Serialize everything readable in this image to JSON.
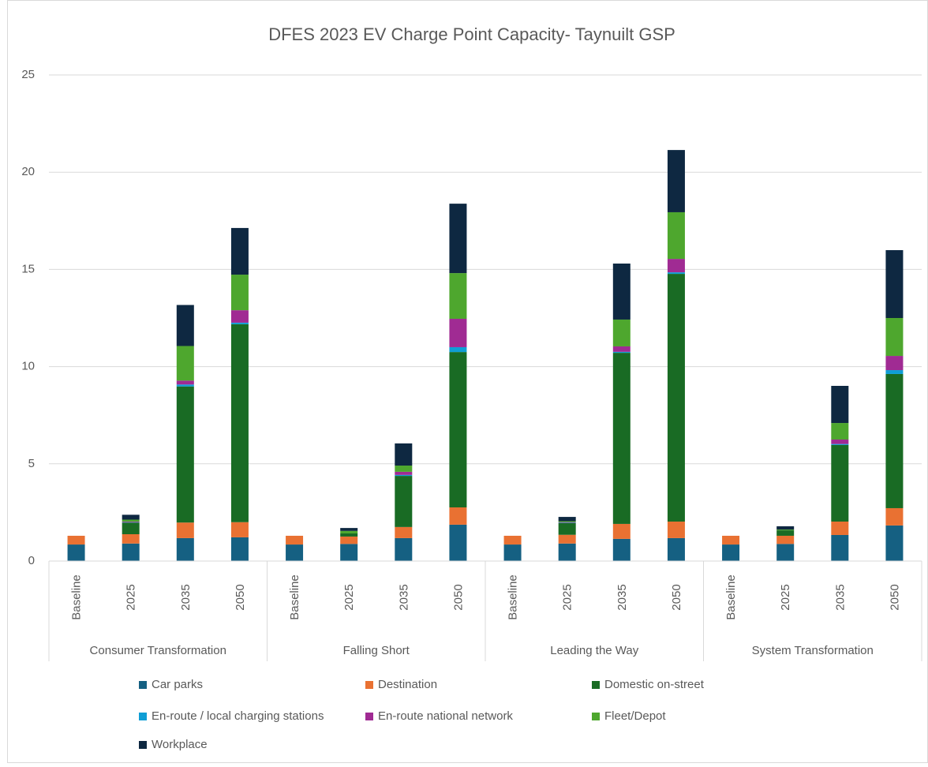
{
  "chart_data": {
    "type": "stacked_bar",
    "title": "DFES 2023 EV Charge Point Capacity- Taynuilt GSP",
    "groups": [
      "Consumer Transformation",
      "Falling Short",
      "Leading the Way",
      "System Transformation"
    ],
    "categories": [
      "Baseline",
      "2025",
      "2035",
      "2050",
      "Baseline",
      "2025",
      "2035",
      "2050",
      "Baseline",
      "2025",
      "2035",
      "2050",
      "Baseline",
      "2025",
      "2035",
      "2050"
    ],
    "ylim": [
      0,
      25
    ],
    "yticks": [
      0,
      5,
      10,
      15,
      20,
      25
    ],
    "grid": true,
    "series": [
      {
        "name": "Car parks",
        "color": "#156082",
        "values": [
          0.85,
          0.9,
          1.18,
          1.22,
          0.85,
          0.88,
          1.18,
          1.87,
          0.85,
          0.9,
          1.14,
          1.18,
          0.85,
          0.88,
          1.34,
          1.83
        ]
      },
      {
        "name": "Destination",
        "color": "#e97132",
        "values": [
          0.45,
          0.48,
          0.8,
          0.78,
          0.45,
          0.38,
          0.57,
          0.89,
          0.45,
          0.45,
          0.77,
          0.85,
          0.45,
          0.42,
          0.69,
          0.89
        ]
      },
      {
        "name": "Domestic on-street",
        "color": "#196b24",
        "values": [
          0,
          0.6,
          7.0,
          10.18,
          0,
          0.16,
          2.63,
          7.99,
          0,
          0.6,
          8.8,
          12.74,
          0,
          0.28,
          3.94,
          6.9
        ]
      },
      {
        "name": "En-route / local charging stations",
        "color": "#0f9ed5",
        "values": [
          0,
          0.02,
          0.1,
          0.08,
          0,
          0,
          0.05,
          0.25,
          0,
          0.02,
          0.05,
          0.08,
          0,
          0,
          0.05,
          0.2
        ]
      },
      {
        "name": "En-route national network",
        "color": "#a02b93",
        "values": [
          0,
          0.03,
          0.2,
          0.64,
          0,
          0,
          0.16,
          1.46,
          0,
          0.03,
          0.28,
          0.69,
          0,
          0,
          0.23,
          0.73
        ]
      },
      {
        "name": "Fleet/Depot",
        "color": "#4ea72e",
        "values": [
          0,
          0.1,
          1.78,
          1.83,
          0,
          0.13,
          0.32,
          2.35,
          0,
          0.05,
          1.38,
          2.4,
          0,
          0.04,
          0.85,
          1.95
        ]
      },
      {
        "name": "Workplace",
        "color": "#0e2841",
        "values": [
          0,
          0.25,
          2.11,
          2.4,
          0,
          0.15,
          1.14,
          3.57,
          0,
          0.22,
          2.88,
          3.2,
          0,
          0.17,
          1.91,
          3.49
        ]
      }
    ]
  }
}
